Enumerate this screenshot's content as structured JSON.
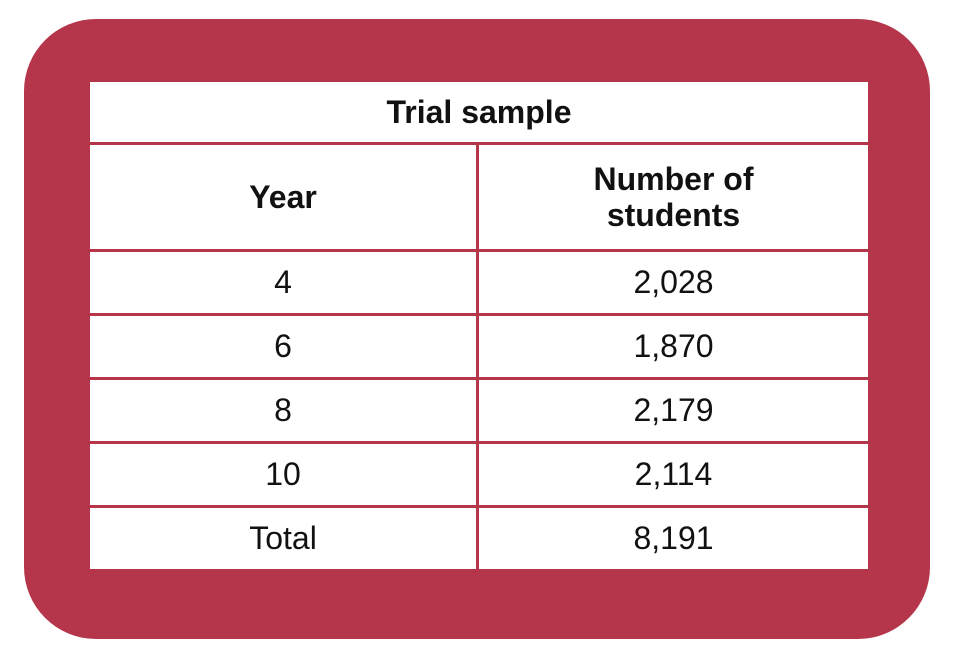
{
  "table": {
    "title": "Trial sample",
    "headers": {
      "year": "Year",
      "students_line1": "Number of",
      "students_line2": "students"
    },
    "rows": [
      {
        "year": "4",
        "students": "2,028"
      },
      {
        "year": "6",
        "students": "1,870"
      },
      {
        "year": "8",
        "students": "2,179"
      },
      {
        "year": "10",
        "students": "2,114"
      },
      {
        "year": "Total",
        "students": "8,191"
      }
    ]
  },
  "colors": {
    "frame": "#b5364b",
    "cell_background": "#ffffff",
    "text": "#111111"
  }
}
